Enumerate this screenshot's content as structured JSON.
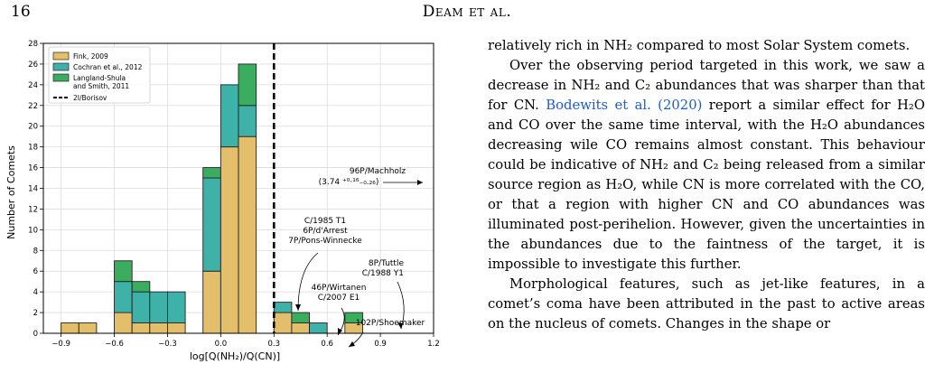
{
  "header": {
    "page_number": "16",
    "running_title": "Deam et al."
  },
  "chart_data": {
    "type": "bar",
    "stacked": true,
    "x_bin_edges": [
      -0.9,
      -0.8,
      -0.7,
      -0.6,
      -0.5,
      -0.4,
      -0.3,
      -0.2,
      -0.1,
      0.0,
      0.1,
      0.2,
      0.3,
      0.4,
      0.5,
      0.6,
      0.7,
      0.8,
      0.9,
      1.0
    ],
    "series": [
      {
        "name": "Fink, 2009",
        "color": "#e3bf6b",
        "values": [
          1,
          1,
          0,
          2,
          1,
          1,
          1,
          0,
          6,
          18,
          19,
          0,
          2,
          1,
          0,
          0,
          1,
          0,
          0
        ]
      },
      {
        "name": "Cochran et al., 2012",
        "color": "#3eb2a8",
        "values": [
          0,
          0,
          0,
          3,
          3,
          3,
          3,
          0,
          9,
          6,
          3,
          0,
          1,
          0,
          1,
          0,
          0,
          0,
          0
        ]
      },
      {
        "name": "Langland-Shula\n and Smith, 2011",
        "color": "#3aad5f",
        "values": [
          0,
          0,
          0,
          2,
          1,
          0,
          0,
          0,
          1,
          0,
          4,
          0,
          0,
          1,
          0,
          0,
          1,
          0,
          0
        ]
      }
    ],
    "vline": {
      "x": 0.3,
      "name": "2I/Borisov"
    },
    "xlabel": "log[Q(NH₂)/Q(CN)]",
    "ylabel": "Number of Comets",
    "xlim": [
      -1.0,
      1.2
    ],
    "ylim": [
      0,
      28
    ],
    "xticks": [
      -0.9,
      -0.6,
      -0.3,
      0.0,
      0.3,
      0.6,
      0.9,
      1.2
    ],
    "xtick_labels": [
      "−0.9",
      "−0.6",
      "−0.3",
      "0.0",
      "0.3",
      "0.6",
      "0.9",
      "1.2"
    ],
    "yticks": [
      0,
      2,
      4,
      6,
      8,
      10,
      12,
      14,
      16,
      18,
      20,
      22,
      24,
      26,
      28
    ],
    "grid": true,
    "legend_position": "top-left",
    "annotations": [
      {
        "lines": [
          "96P/Machholz"
        ],
        "extra": "(3.74 ⁺⁰·¹⁶₋₀.₂₆)"
      },
      {
        "lines": [
          "C/1985 T1",
          "6P/d'Arrest",
          "7P/Pons-Winnecke"
        ]
      },
      {
        "lines": [
          "8P/Tuttle",
          "C/1988 Y1"
        ]
      },
      {
        "lines": [
          "46P/Wirtanen",
          "C/2007 E1"
        ]
      },
      {
        "lines": [
          "102P/Shoemaker"
        ]
      }
    ]
  },
  "text": {
    "p1": "relatively rich in NH₂ compared to most Solar System comets.",
    "p2_a": "Over the observing period targeted in this work, we saw a decrease in NH₂ and C₂ abundances that was sharper than that for CN. ",
    "p2_cite": "Bodewits et al. (2020)",
    "p2_b": " report a similar effect for H₂O and CO over the same time interval, with the H₂O abundances decreasing wile CO remains almost constant. This behaviour could be indicative of NH₂ and C₂ being released from a similar source region as H₂O, while CN is more correlated with the CO, or that a region with higher CN and CO abundances was illuminated post-perihelion. However, given the uncertainties in the abundances due to the faintness of the target, it is impossible to investigate this further.",
    "p3": "Morphological features, such as jet-like features, in a comet’s coma have been attributed in the past to active areas on the nucleus of comets. Changes in the shape or"
  }
}
